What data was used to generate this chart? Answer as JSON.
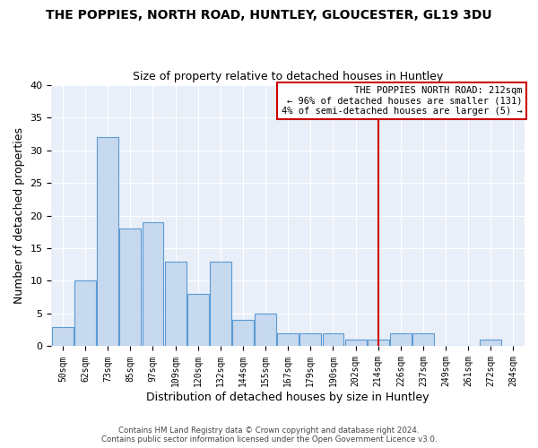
{
  "title": "THE POPPIES, NORTH ROAD, HUNTLEY, GLOUCESTER, GL19 3DU",
  "subtitle": "Size of property relative to detached houses in Huntley",
  "xlabel": "Distribution of detached houses by size in Huntley",
  "ylabel": "Number of detached properties",
  "bar_labels": [
    "50sqm",
    "62sqm",
    "73sqm",
    "85sqm",
    "97sqm",
    "109sqm",
    "120sqm",
    "132sqm",
    "144sqm",
    "155sqm",
    "167sqm",
    "179sqm",
    "190sqm",
    "202sqm",
    "214sqm",
    "226sqm",
    "237sqm",
    "249sqm",
    "261sqm",
    "272sqm",
    "284sqm"
  ],
  "bar_values": [
    3,
    10,
    32,
    18,
    19,
    13,
    8,
    13,
    4,
    5,
    2,
    2,
    2,
    1,
    1,
    2,
    2,
    0,
    0,
    1,
    0
  ],
  "bar_color": "#c7d9ee",
  "bar_edge_color": "#5b9bd5",
  "highlight_index": 14,
  "highlight_line_color": "#cc0000",
  "ylim": [
    0,
    40
  ],
  "yticks": [
    0,
    5,
    10,
    15,
    20,
    25,
    30,
    35,
    40
  ],
  "annotation_title": "THE POPPIES NORTH ROAD: 212sqm",
  "annotation_line1": "← 96% of detached houses are smaller (131)",
  "annotation_line2": "4% of semi-detached houses are larger (5) →",
  "footer1": "Contains HM Land Registry data © Crown copyright and database right 2024.",
  "footer2": "Contains public sector information licensed under the Open Government Licence v3.0.",
  "background_color": "#ffffff",
  "plot_bg_color": "#e8eff8",
  "grid_color": "#ffffff",
  "ann_box_color": "#cc0000"
}
